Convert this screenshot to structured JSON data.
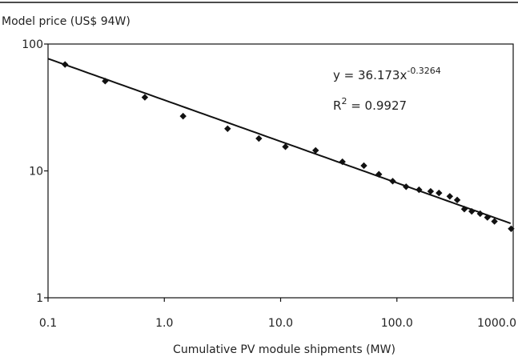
{
  "chart_data": {
    "type": "scatter",
    "title": "",
    "ylabel": "Model price (US$ 94W)",
    "xlabel": "Cumulative PV module shipments (MW)",
    "x_scale": "log",
    "y_scale": "log",
    "xlim": [
      0.1,
      1000
    ],
    "ylim": [
      1,
      100
    ],
    "x_ticks": [
      "0.1",
      "1.0",
      "10.0",
      "100.0",
      "1000.0"
    ],
    "y_ticks": [
      "1",
      "10",
      "100"
    ],
    "grid": false,
    "legend": "none",
    "colors": {
      "points": "#111111",
      "trendline": "#111111",
      "axis": "#111111"
    },
    "annotations": {
      "equation_prefix": "y = 36.173x",
      "equation_exponent": "-0.3264",
      "r2_prefix": "R",
      "r2_sup": "2",
      "r2_suffix": " = 0.9927"
    },
    "trendline": {
      "type": "power",
      "a": 36.173,
      "b": -0.3264,
      "x_from": 0.1,
      "x_to": 950
    },
    "series": [
      {
        "x": [
          0.14,
          0.31,
          0.68,
          1.45,
          3.5,
          6.5,
          11,
          20,
          34,
          52,
          70,
          92,
          120,
          155,
          195,
          230,
          285,
          330,
          380,
          440,
          520,
          600,
          690,
          960
        ],
        "y": [
          69,
          51,
          38,
          27,
          21.5,
          18,
          15.5,
          14.5,
          11.8,
          11,
          9.4,
          8.3,
          7.5,
          7.1,
          6.9,
          6.7,
          6.3,
          5.9,
          5.0,
          4.8,
          4.6,
          4.3,
          4.0,
          3.5
        ]
      }
    ]
  }
}
